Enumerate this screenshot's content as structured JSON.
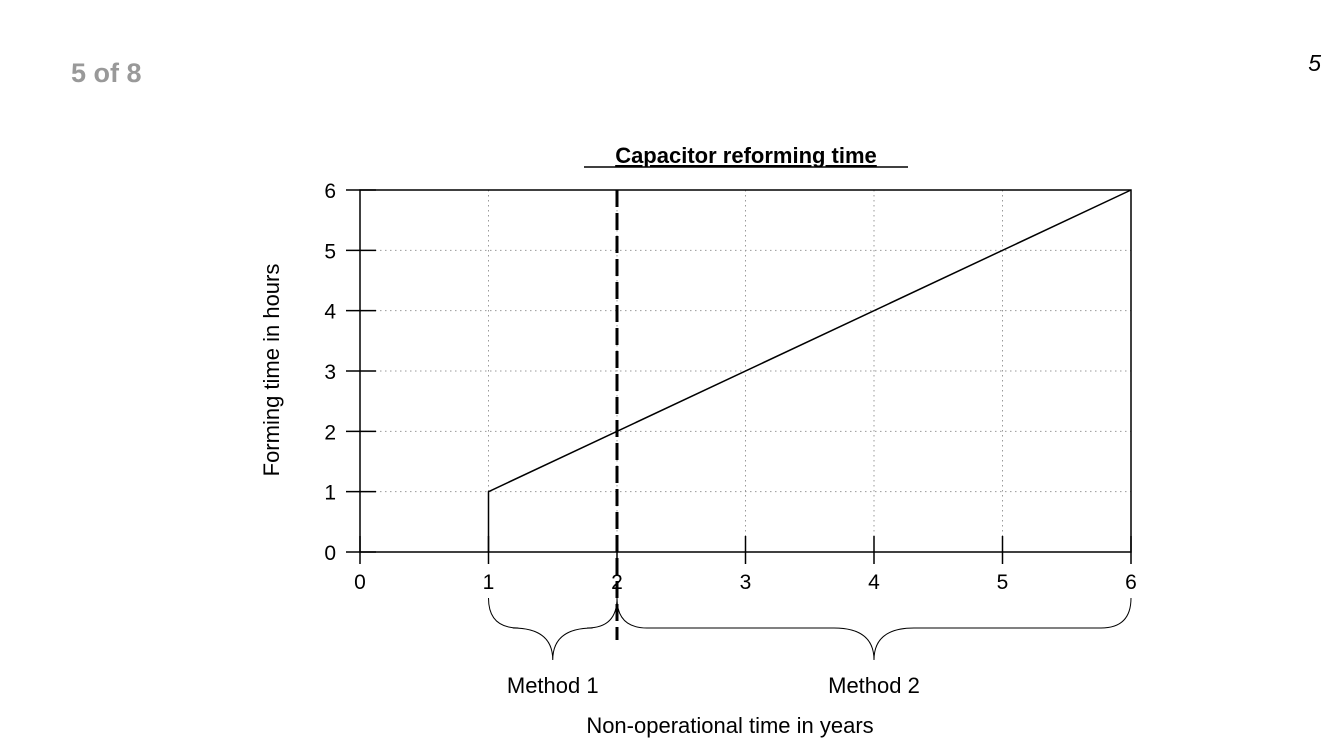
{
  "header": {
    "page_counter": "5 of 8",
    "page_number": "5"
  },
  "chart_data": {
    "type": "line",
    "title": "Capacitor reforming time",
    "xlabel": "Non-operational time in years",
    "ylabel": "Forming time in hours",
    "xlim": [
      0,
      6
    ],
    "ylim": [
      0,
      6
    ],
    "x_ticks": [
      "0",
      "1",
      "2",
      "3",
      "4",
      "5",
      "6"
    ],
    "y_ticks": [
      "0",
      "1",
      "2",
      "3",
      "4",
      "5",
      "6"
    ],
    "grid": true,
    "series": [
      {
        "x": [
          1,
          1,
          6
        ],
        "y": [
          0,
          1,
          6
        ]
      }
    ],
    "threshold_x": 2,
    "regions": [
      {
        "label": "Method 1",
        "from": 1,
        "to": 2
      },
      {
        "label": "Method 2",
        "from": 2,
        "to": 6
      }
    ]
  }
}
